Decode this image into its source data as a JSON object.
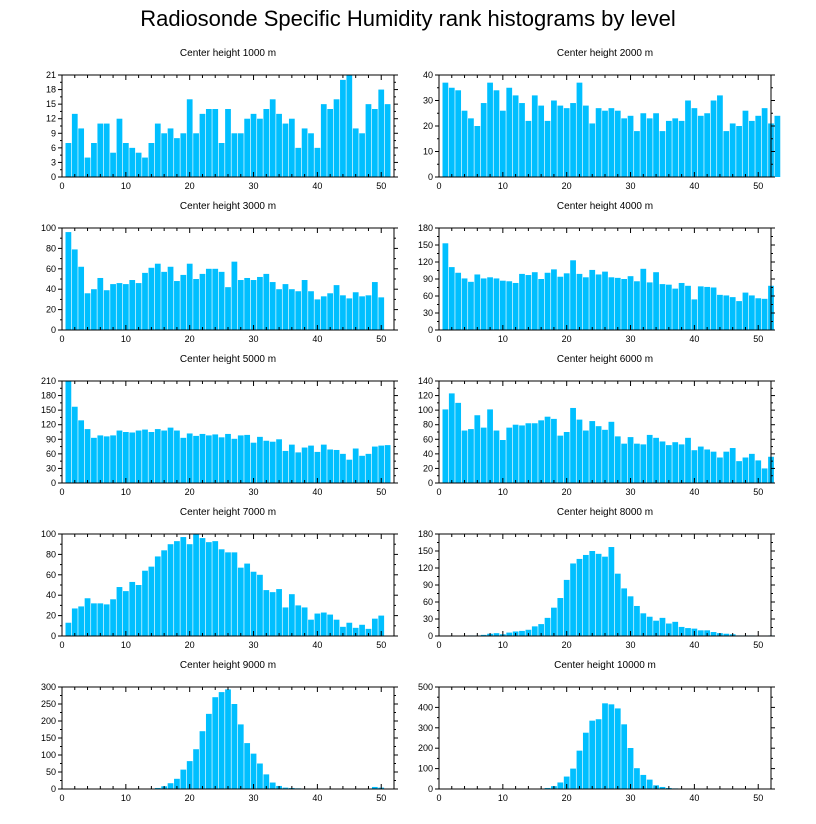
{
  "title": "Radiosonde Specific Humidity rank histograms by level",
  "colors": {
    "bar": "#00BFFF",
    "axis": "#000000"
  },
  "chart_data": [
    {
      "type": "bar",
      "title": "Center height 1000 m",
      "xlim": [
        0,
        52
      ],
      "ylim": [
        0,
        21
      ],
      "xticks": [
        0,
        10,
        20,
        30,
        40,
        50
      ],
      "yticks": [
        0,
        3,
        6,
        9,
        12,
        15,
        18,
        21
      ],
      "values": [
        7,
        13,
        10,
        4,
        7,
        11,
        11,
        5,
        12,
        7,
        6,
        5,
        4,
        7,
        11,
        9,
        10,
        8,
        9,
        16,
        9,
        13,
        14,
        14,
        7,
        14,
        9,
        9,
        12,
        13,
        12,
        14,
        16,
        13,
        11,
        12,
        6,
        10,
        9,
        6,
        15,
        14,
        16,
        20,
        21,
        10,
        9,
        15,
        14,
        18,
        15
      ]
    },
    {
      "type": "bar",
      "title": "Center height 2000 m",
      "xlim": [
        0,
        52
      ],
      "ylim": [
        0,
        40
      ],
      "xticks": [
        0,
        10,
        20,
        30,
        40,
        50
      ],
      "yticks": [
        0,
        10,
        20,
        30,
        40
      ],
      "values": [
        37,
        35,
        34,
        26,
        23,
        20,
        29,
        37,
        34,
        26,
        35,
        32,
        29,
        22,
        32,
        28,
        22,
        30,
        28,
        27,
        29,
        37,
        28,
        21,
        27,
        26,
        27,
        26,
        23,
        24,
        18,
        25,
        23,
        25,
        18,
        22,
        23,
        22,
        30,
        27,
        24,
        25,
        30,
        32,
        18,
        21,
        20,
        26,
        22,
        24,
        27,
        21,
        24
      ]
    },
    {
      "type": "bar",
      "title": "Center height 3000 m",
      "xlim": [
        0,
        52
      ],
      "ylim": [
        0,
        100
      ],
      "xticks": [
        0,
        10,
        20,
        30,
        40,
        50
      ],
      "yticks": [
        0,
        20,
        40,
        60,
        80,
        100
      ],
      "values": [
        96,
        79,
        62,
        36,
        40,
        51,
        39,
        45,
        46,
        45,
        49,
        46,
        56,
        61,
        65,
        57,
        62,
        48,
        54,
        65,
        50,
        55,
        60,
        60,
        57,
        42,
        67,
        49,
        51,
        49,
        52,
        55,
        47,
        40,
        45,
        40,
        38,
        49,
        38,
        30,
        33,
        36,
        44,
        34,
        31,
        37,
        33,
        34,
        47,
        32
      ]
    },
    {
      "type": "bar",
      "title": "Center height 4000 m",
      "xlim": [
        0,
        52
      ],
      "ylim": [
        0,
        180
      ],
      "xticks": [
        0,
        10,
        20,
        30,
        40,
        50
      ],
      "yticks": [
        0,
        30,
        60,
        90,
        120,
        150,
        180
      ],
      "values": [
        153,
        111,
        101,
        91,
        85,
        98,
        91,
        93,
        91,
        87,
        86,
        83,
        99,
        97,
        102,
        90,
        101,
        107,
        94,
        100,
        123,
        99,
        93,
        106,
        98,
        103,
        93,
        92,
        90,
        95,
        86,
        108,
        84,
        102,
        81,
        80,
        73,
        83,
        78,
        54,
        77,
        76,
        75,
        62,
        61,
        58,
        51,
        66,
        61,
        56,
        55,
        78
      ]
    },
    {
      "type": "bar",
      "title": "Center height 5000 m",
      "xlim": [
        0,
        52
      ],
      "ylim": [
        0,
        210
      ],
      "xticks": [
        0,
        10,
        20,
        30,
        40,
        50
      ],
      "yticks": [
        0,
        30,
        60,
        90,
        120,
        150,
        180,
        210
      ],
      "values": [
        210,
        157,
        129,
        111,
        93,
        98,
        96,
        98,
        108,
        105,
        104,
        108,
        110,
        105,
        111,
        108,
        114,
        108,
        93,
        102,
        97,
        101,
        98,
        100,
        94,
        101,
        91,
        98,
        99,
        83,
        95,
        87,
        85,
        90,
        66,
        79,
        63,
        73,
        77,
        64,
        79,
        69,
        68,
        60,
        48,
        71,
        56,
        60,
        75,
        77,
        78
      ]
    },
    {
      "type": "bar",
      "title": "Center height 6000 m",
      "xlim": [
        0,
        52
      ],
      "ylim": [
        0,
        140
      ],
      "xticks": [
        0,
        10,
        20,
        30,
        40,
        50
      ],
      "yticks": [
        0,
        20,
        40,
        60,
        80,
        100,
        120,
        140
      ],
      "values": [
        101,
        123,
        110,
        72,
        74,
        93,
        76,
        101,
        72,
        59,
        76,
        80,
        79,
        82,
        82,
        86,
        91,
        88,
        65,
        70,
        103,
        87,
        72,
        85,
        78,
        73,
        84,
        64,
        54,
        63,
        54,
        53,
        66,
        62,
        57,
        52,
        56,
        53,
        62,
        45,
        50,
        46,
        43,
        35,
        43,
        48,
        30,
        35,
        40,
        31,
        20,
        36
      ]
    },
    {
      "type": "bar",
      "title": "Center height 7000 m",
      "xlim": [
        0,
        52
      ],
      "ylim": [
        0,
        100
      ],
      "xticks": [
        0,
        10,
        20,
        30,
        40,
        50
      ],
      "yticks": [
        0,
        20,
        40,
        60,
        80,
        100
      ],
      "values": [
        13,
        27,
        29,
        37,
        32,
        32,
        31,
        36,
        48,
        44,
        53,
        50,
        64,
        68,
        78,
        84,
        90,
        93,
        97,
        90,
        100,
        96,
        92,
        93,
        85,
        82,
        82,
        67,
        71,
        63,
        60,
        45,
        43,
        46,
        28,
        41,
        30,
        28,
        16,
        22,
        23,
        21,
        16,
        9,
        13,
        8,
        11,
        7,
        17,
        20
      ]
    },
    {
      "type": "bar",
      "title": "Center height 8000 m",
      "xlim": [
        0,
        52
      ],
      "ylim": [
        0,
        180
      ],
      "xticks": [
        0,
        10,
        20,
        30,
        40,
        50
      ],
      "yticks": [
        0,
        30,
        60,
        90,
        120,
        150,
        180
      ],
      "values": [
        0,
        0,
        0,
        0,
        1,
        1,
        2,
        4,
        5,
        3,
        6,
        8,
        9,
        11,
        17,
        21,
        32,
        50,
        67,
        99,
        128,
        136,
        143,
        150,
        145,
        140,
        157,
        110,
        84,
        70,
        53,
        40,
        34,
        27,
        32,
        22,
        25,
        16,
        14,
        13,
        10,
        10,
        7,
        5,
        4,
        3,
        1,
        1,
        1,
        0,
        0,
        1
      ]
    },
    {
      "type": "bar",
      "title": "Center height 9000 m",
      "xlim": [
        0,
        52
      ],
      "ylim": [
        0,
        300
      ],
      "xticks": [
        0,
        10,
        20,
        30,
        40,
        50
      ],
      "yticks": [
        0,
        50,
        100,
        150,
        200,
        250,
        300
      ],
      "values": [
        0,
        0,
        0,
        0,
        0,
        0,
        0,
        0,
        0,
        0,
        0,
        0,
        0,
        0,
        3,
        8,
        17,
        30,
        57,
        82,
        117,
        170,
        221,
        270,
        285,
        293,
        250,
        190,
        135,
        104,
        75,
        43,
        19,
        9,
        4,
        3,
        2,
        1,
        1,
        1,
        1,
        1,
        1,
        1,
        1,
        1,
        1,
        1,
        6,
        4
      ]
    },
    {
      "type": "bar",
      "title": "Center height 10000 m",
      "xlim": [
        0,
        52
      ],
      "ylim": [
        0,
        500
      ],
      "xticks": [
        0,
        10,
        20,
        30,
        40,
        50
      ],
      "yticks": [
        0,
        100,
        200,
        300,
        400,
        500
      ],
      "values": [
        0,
        0,
        0,
        0,
        0,
        0,
        0,
        0,
        0,
        0,
        0,
        0,
        0,
        0,
        0,
        0,
        5,
        14,
        32,
        61,
        100,
        188,
        276,
        335,
        342,
        420,
        415,
        395,
        317,
        201,
        102,
        69,
        46,
        18,
        10,
        5,
        3,
        1,
        1,
        1,
        0,
        0,
        0,
        0,
        0,
        0,
        0,
        0,
        0,
        0
      ]
    }
  ]
}
